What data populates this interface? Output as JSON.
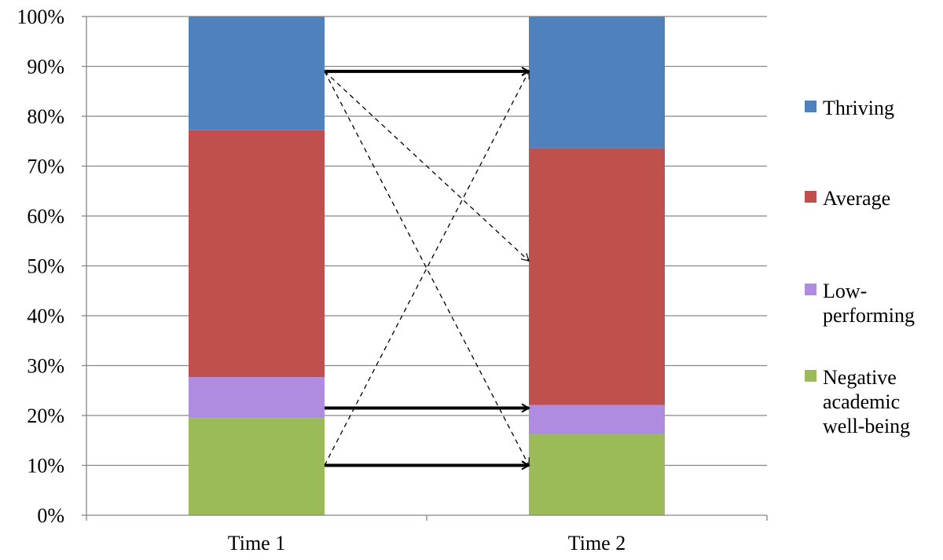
{
  "chart_data": {
    "type": "bar",
    "stacked": true,
    "percent_stacked": true,
    "title": "",
    "xlabel": "",
    "ylabel": "",
    "categories": [
      "Time 1",
      "Time 2"
    ],
    "y_ticks": [
      "0%",
      "10%",
      "20%",
      "30%",
      "40%",
      "50%",
      "60%",
      "70%",
      "80%",
      "90%",
      "100%"
    ],
    "ylim": [
      0,
      100
    ],
    "grid": true,
    "legend_position": "right",
    "series": [
      {
        "name": "Negative academic well-being",
        "legend_lines": [
          "Negative",
          "academic",
          "well-being"
        ],
        "color": "#9bbb59",
        "values": [
          19.5,
          16.3
        ]
      },
      {
        "name": "Low-performing",
        "legend_lines": [
          "Low-",
          "performing"
        ],
        "color": "#b08ce0",
        "values": [
          8.2,
          5.8
        ]
      },
      {
        "name": "Average",
        "legend_lines": [
          "Average"
        ],
        "color": "#c0504d",
        "values": [
          49.5,
          51.5
        ]
      },
      {
        "name": "Thriving",
        "legend_lines": [
          "Thriving"
        ],
        "color": "#4f81bd",
        "values": [
          22.8,
          26.4
        ]
      }
    ],
    "transitions": [
      {
        "from_category": "Time 1",
        "from_y": 89,
        "to_category": "Time 2",
        "to_y": 89,
        "style": "solid"
      },
      {
        "from_category": "Time 1",
        "from_y": 21.5,
        "to_category": "Time 2",
        "to_y": 21.5,
        "style": "solid"
      },
      {
        "from_category": "Time 1",
        "from_y": 10,
        "to_category": "Time 2",
        "to_y": 10,
        "style": "solid"
      },
      {
        "from_category": "Time 1",
        "from_y": 89,
        "to_category": "Time 2",
        "to_y": 51,
        "style": "dashed"
      },
      {
        "from_category": "Time 1",
        "from_y": 89,
        "to_category": "Time 2",
        "to_y": 10,
        "style": "dashed"
      },
      {
        "from_category": "Time 1",
        "from_y": 10,
        "to_category": "Time 2",
        "to_y": 89,
        "style": "dashed"
      }
    ]
  }
}
